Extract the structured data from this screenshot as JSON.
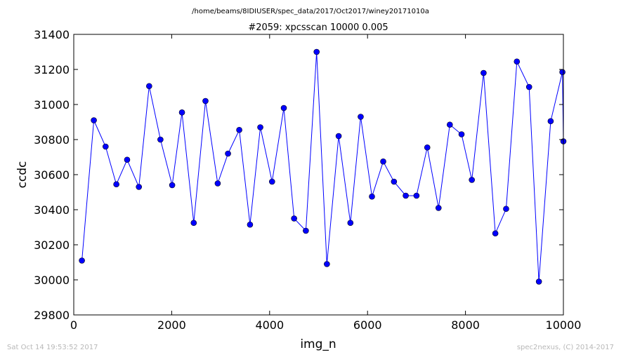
{
  "chart_data": {
    "type": "line",
    "suptitle": "/home/beams/8IDIUSER/spec_data/2017/Oct2017/winey20171010a",
    "title": "#2059: xpcsscan 10000 0.005",
    "xlabel": "img_n",
    "ylabel": "ccdc",
    "xlim": [
      0,
      10000
    ],
    "ylim": [
      29800,
      31400
    ],
    "xticks": [
      0,
      2000,
      4000,
      6000,
      8000,
      10000
    ],
    "yticks": [
      29800,
      30000,
      30200,
      30400,
      30600,
      30800,
      31000,
      31200,
      31400
    ],
    "grid": false,
    "line_color": "#0000ff",
    "marker_color": "#0000ff",
    "series": [
      {
        "x": [
          166,
          410,
          650,
          870,
          1090,
          1330,
          1540,
          1770,
          2010,
          2210,
          2450,
          2690,
          2940,
          3150,
          3380,
          3600,
          3810,
          4050,
          4290,
          4500,
          4740,
          4960,
          5170,
          5410,
          5650,
          5860,
          6090,
          6320,
          6540,
          6780,
          7000,
          7220,
          7450,
          7680,
          7920,
          8130,
          8370,
          8610,
          8830,
          9050,
          9300,
          9500,
          9740,
          9980,
          10000
        ],
        "y": [
          30110,
          30910,
          30760,
          30545,
          30685,
          30530,
          31105,
          30800,
          30540,
          30955,
          30325,
          31020,
          30550,
          30720,
          30855,
          30315,
          30870,
          30560,
          30980,
          30350,
          30280,
          31300,
          30090,
          30820,
          30325,
          30930,
          30475,
          30675,
          30560,
          30480,
          30480,
          30755,
          30410,
          30885,
          30830,
          30570,
          31180,
          30265,
          30405,
          31245,
          31100,
          29990,
          30905,
          31185,
          30790
        ]
      }
    ]
  },
  "footer": {
    "left": "Sat Oct 14 19:53:52 2017",
    "right": "spec2nexus, (C) 2014-2017"
  }
}
